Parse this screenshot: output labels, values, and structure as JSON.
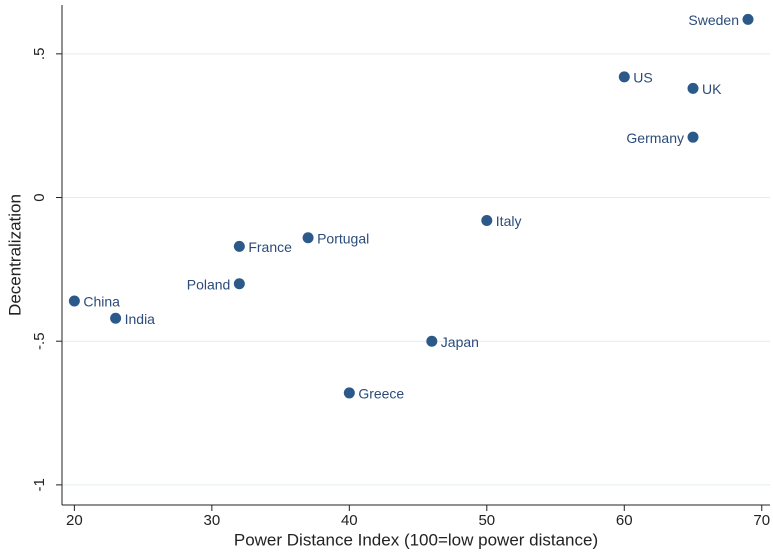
{
  "chart_data": {
    "type": "scatter",
    "x_label": "Power Distance Index (100=low power distance)",
    "y_label": "Decentralization",
    "labels": [
      "Sweden",
      "US",
      "UK",
      "Germany",
      "Italy",
      "Portugal",
      "France",
      "Poland",
      "China",
      "India",
      "Japan",
      "Greece"
    ],
    "x": [
      69,
      60,
      65,
      65,
      50,
      37,
      32,
      32,
      20,
      23,
      46,
      40
    ],
    "values": [
      0.62,
      0.42,
      0.38,
      0.21,
      -0.08,
      -0.14,
      -0.17,
      -0.3,
      -0.36,
      -0.42,
      -0.5,
      -0.68
    ],
    "color": "#2b5a8a",
    "xlim": [
      19.1,
      70.6
    ],
    "ylim": [
      -1.07,
      0.67
    ],
    "xticks": [
      20,
      30,
      40,
      50,
      60,
      70
    ],
    "yticks": [
      {
        "value": 0.5,
        "label": ".5"
      },
      0,
      {
        "value": -0.5,
        "label": "-.5"
      },
      -1
    ],
    "grid": true
  }
}
